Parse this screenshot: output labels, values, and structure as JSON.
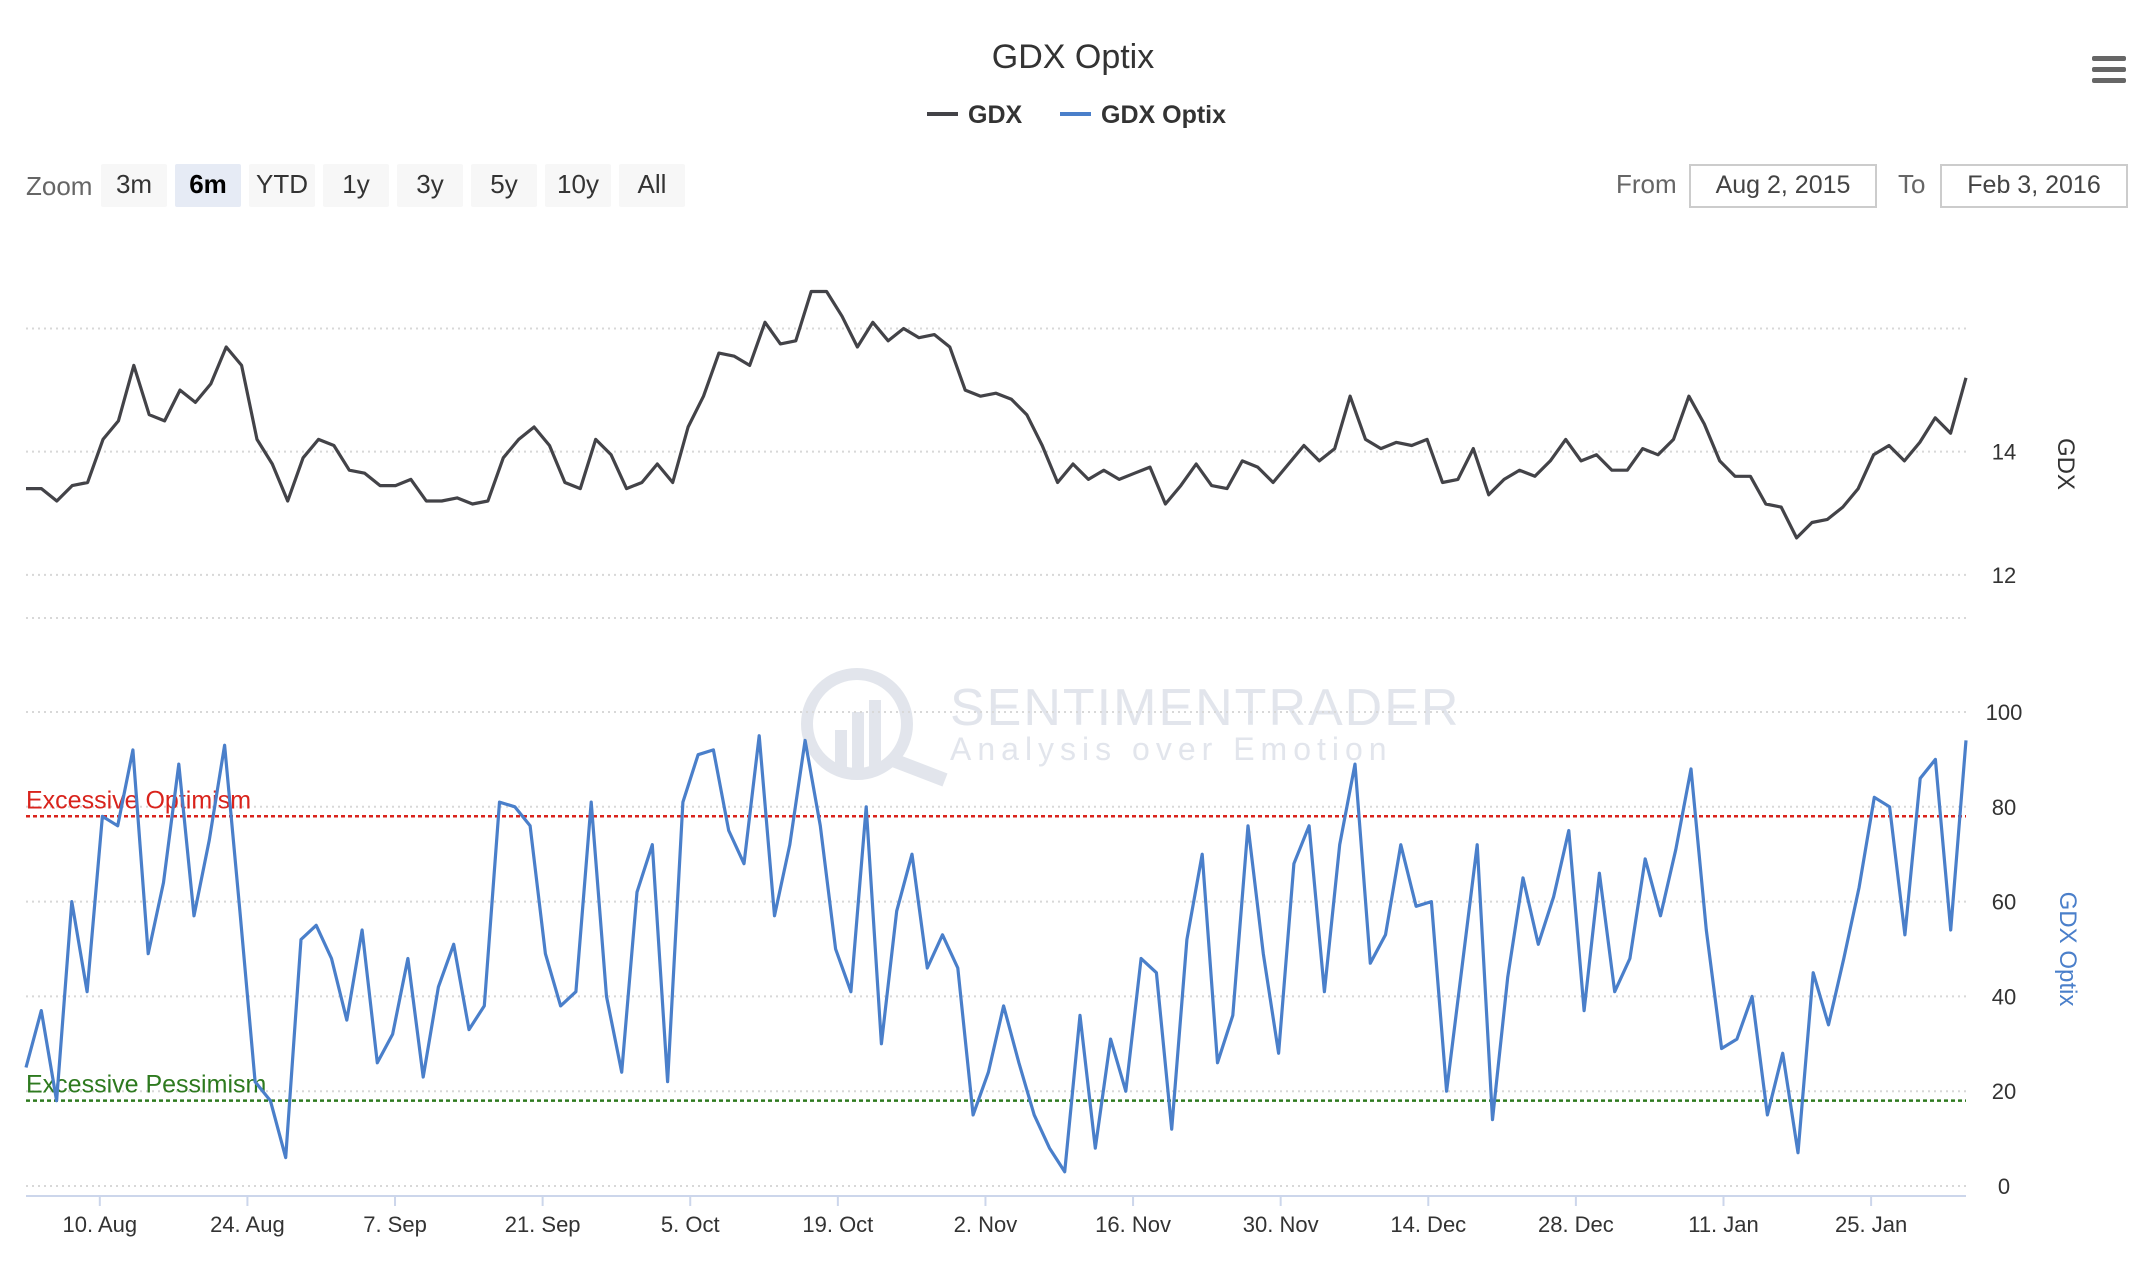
{
  "title": "GDX Optix",
  "legend": [
    {
      "name": "GDX",
      "color": "#434348"
    },
    {
      "name": "GDX Optix",
      "color": "#4a7fca"
    }
  ],
  "rangeSelector": {
    "zoom_label": "Zoom",
    "buttons": [
      "3m",
      "6m",
      "YTD",
      "1y",
      "3y",
      "5y",
      "10y",
      "All"
    ],
    "selected": "6m",
    "from_label": "From",
    "from_value": "Aug 2, 2015",
    "to_label": "To",
    "to_value": "Feb 3, 2016"
  },
  "menu_icon": "hamburger-menu-icon",
  "watermark": {
    "line1": "SENTIMENTRADER",
    "line2": "Analysis over Emotion"
  },
  "chart_data": {
    "type": "line",
    "x_axis": {
      "tick_labels": [
        "10. Aug",
        "24. Aug",
        "7. Sep",
        "21. Sep",
        "5. Oct",
        "19. Oct",
        "2. Nov",
        "16. Nov",
        "30. Nov",
        "14. Dec",
        "28. Dec",
        "11. Jan",
        "25. Jan"
      ],
      "range": [
        "2015-08-03",
        "2016-02-03"
      ]
    },
    "panes": [
      {
        "series_name": "GDX",
        "axis_title": "GDX",
        "color": "#434348",
        "yticks": [
          12,
          14
        ],
        "ylim": [
          11.3,
          16.3
        ],
        "grid": true,
        "values": [
          13.4,
          13.4,
          13.2,
          13.45,
          13.5,
          14.2,
          14.5,
          15.4,
          14.6,
          14.5,
          15.0,
          14.8,
          15.1,
          15.7,
          15.4,
          14.2,
          13.8,
          13.2,
          13.9,
          14.2,
          14.1,
          13.7,
          13.65,
          13.45,
          13.45,
          13.55,
          13.2,
          13.2,
          13.25,
          13.15,
          13.2,
          13.9,
          14.2,
          14.4,
          14.1,
          13.5,
          13.4,
          14.2,
          13.95,
          13.4,
          13.5,
          13.8,
          13.5,
          14.4,
          14.9,
          15.6,
          15.55,
          15.4,
          16.1,
          15.75,
          15.8,
          16.6,
          16.6,
          16.2,
          15.7,
          16.1,
          15.8,
          16.0,
          15.85,
          15.9,
          15.7,
          15.0,
          14.9,
          14.95,
          14.85,
          14.6,
          14.1,
          13.5,
          13.8,
          13.55,
          13.7,
          13.55,
          13.65,
          13.75,
          13.15,
          13.45,
          13.8,
          13.45,
          13.4,
          13.85,
          13.75,
          13.5,
          13.8,
          14.1,
          13.85,
          14.05,
          14.9,
          14.2,
          14.05,
          14.15,
          14.1,
          14.2,
          13.5,
          13.55,
          14.05,
          13.3,
          13.55,
          13.7,
          13.6,
          13.85,
          14.2,
          13.85,
          13.95,
          13.7,
          13.7,
          14.05,
          13.95,
          14.2,
          14.9,
          14.45,
          13.85,
          13.6,
          13.6,
          13.15,
          13.1,
          12.6,
          12.85,
          12.9,
          13.1,
          13.4,
          13.95,
          14.1,
          13.85,
          14.15,
          14.55,
          14.3,
          15.2
        ]
      },
      {
        "series_name": "GDX Optix",
        "axis_title": "GDX Optix",
        "color": "#4a7fca",
        "yticks": [
          0,
          20,
          40,
          60,
          80,
          100
        ],
        "ylim": [
          0,
          100
        ],
        "grid": true,
        "plot_lines": [
          {
            "label": "Excessive Optimism",
            "value": 78,
            "color": "#d9231c"
          },
          {
            "label": "Excessive Pessimism",
            "value": 18,
            "color": "#2e7a1f"
          }
        ],
        "values": [
          25,
          37,
          18,
          60,
          41,
          78,
          76,
          92,
          49,
          64,
          89,
          57,
          73,
          93,
          58,
          22,
          18,
          6,
          52,
          55,
          48,
          35,
          54,
          26,
          32,
          48,
          23,
          42,
          51,
          33,
          38,
          81,
          80,
          76,
          49,
          38,
          41,
          81,
          40,
          24,
          62,
          72,
          22,
          81,
          91,
          92,
          75,
          68,
          95,
          57,
          72,
          94,
          76,
          50,
          41,
          80,
          30,
          58,
          70,
          46,
          53,
          46,
          15,
          24,
          38,
          26,
          15,
          8,
          3,
          36,
          8,
          31,
          20,
          48,
          45,
          12,
          52,
          70,
          26,
          36,
          76,
          49,
          28,
          68,
          76,
          41,
          72,
          89,
          47,
          53,
          72,
          59,
          60,
          20,
          46,
          72,
          14,
          44,
          65,
          51,
          61,
          75,
          37,
          66,
          41,
          48,
          69,
          57,
          71,
          88,
          54,
          29,
          31,
          40,
          15,
          28,
          7,
          45,
          34,
          48,
          63,
          82,
          80,
          53,
          86,
          90,
          54,
          94
        ]
      }
    ]
  }
}
